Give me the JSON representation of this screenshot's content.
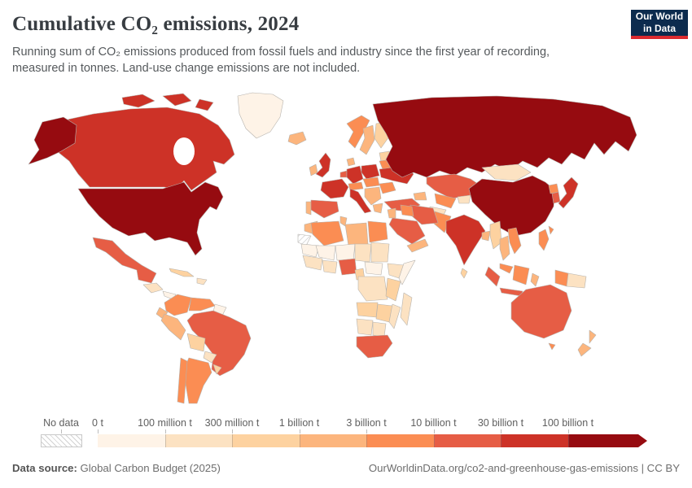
{
  "header": {
    "title": "Cumulative CO₂ emissions, 2024",
    "subtitle": "Running sum of CO₂ emissions produced from fossil fuels and industry since the first year of recording, measured in tonnes. Land-use change emissions are not included.",
    "logo_line1": "Our World",
    "logo_line2": "in Data",
    "logo_bg": "#0c2b4e",
    "logo_accent": "#dc2a2f"
  },
  "legend": {
    "no_data_label": "No data",
    "bins": [
      {
        "label": "0 t",
        "color": "#fef3e7"
      },
      {
        "label": "100 million t",
        "color": "#fce2c2"
      },
      {
        "label": "300 million t",
        "color": "#fdd2a0"
      },
      {
        "label": "1 billion t",
        "color": "#fcb57d"
      },
      {
        "label": "3 billion t",
        "color": "#fb8d53"
      },
      {
        "label": "10 billion t",
        "color": "#e65d45"
      },
      {
        "label": "30 billion t",
        "color": "#cd3227"
      },
      {
        "label": "100 billion t",
        "color": "#960b10"
      }
    ]
  },
  "footer": {
    "source_label": "Data source:",
    "source_value": " Global Carbon Budget (2025)",
    "attribution": "OurWorldinData.org/co2-and-greenhouse-gas-emissions | CC BY"
  },
  "map": {
    "palette": {
      "c1": "#fef3e7",
      "c2": "#fce2c2",
      "c3": "#fdd2a0",
      "c4": "#fcb57d",
      "c5": "#fb8d53",
      "c6": "#e65d45",
      "c7": "#cd3227",
      "c8": "#960b10",
      "nodata": "hatch"
    },
    "regions": {
      "greenland": "c1",
      "canada": "c7",
      "alaska": "c8",
      "usa": "c8",
      "mexico": "c6",
      "guatemala": "c2",
      "panama-costa-rica": "c1",
      "cuba": "c3",
      "hispaniola": "c2",
      "colombia": "c5",
      "venezuela": "c5",
      "guyanas": "c1",
      "brazil": "c6",
      "peru": "c4",
      "ecuador": "c4",
      "bolivia": "c3",
      "paraguay": "c2",
      "argentina": "c5",
      "chile": "c5",
      "uruguay": "c3",
      "iceland": "c4",
      "uk": "c7",
      "ireland": "c4",
      "norway": "c5",
      "sweden": "c4",
      "finland": "c3",
      "baltics": "c3",
      "denmark": "c4",
      "germany": "c7",
      "france": "c7",
      "spain": "c6",
      "portugal": "c4",
      "benelux": "c6",
      "italy": "c7",
      "alpine": "c5",
      "poland": "c7",
      "czech-hungary": "c5",
      "balkans": "c4",
      "romania": "c5",
      "ukraine": "c7",
      "belarus": "c5",
      "greece": "c4",
      "turkey": "c6",
      "russia": "c8",
      "kazakhstan": "c6",
      "uzbek-turkmen": "c5",
      "kyrgyz-tajik": "c2",
      "caucasus": "c4",
      "mongolia": "c2",
      "china": "c8",
      "japan": "c7",
      "south-korea": "c6",
      "north-korea": "c5",
      "taiwan": "c5",
      "india": "c7",
      "pakistan": "c5",
      "afghanistan": "c2",
      "iran": "c6",
      "iraq": "c5",
      "saudi-arabia": "c6",
      "yemen-oman": "c4",
      "levant": "c4",
      "bangladesh": "c4",
      "myanmar": "c3",
      "thailand": "c4",
      "vietnam": "c5",
      "malaysia": "c5",
      "sri-lanka": "c3",
      "philippines": "c5",
      "sumatra": "c6",
      "java": "c6",
      "borneo": "c5",
      "sulawesi": "c4",
      "west-new-guinea": "c5",
      "papua-new-guinea": "c2",
      "morocco": "c4",
      "western-sahara": "nodata",
      "algeria": "c5",
      "tunisia": "c4",
      "libya": "c4",
      "egypt": "c5",
      "mauritania": "c1",
      "mali": "c1",
      "niger": "c1",
      "chad": "c2",
      "sudan": "c2",
      "west-africa": "c2",
      "ghana": "c2",
      "nigeria": "c6",
      "cameroon": "c3",
      "ethiopia": "c2",
      "somalia": "c1",
      "central-africa": "c1",
      "drc": "c2",
      "kenya-tanzania": "c3",
      "angola": "c3",
      "zambia-zimbabwe": "c3",
      "mozambique": "c2",
      "namibia": "c2",
      "botswana": "c2",
      "south-africa": "c6",
      "madagascar": "c2",
      "australia": "c6",
      "tasmania": "c5",
      "new-zealand-north": "c4",
      "new-zealand-south": "c4"
    }
  },
  "chart_data": {
    "type": "heatmap",
    "subtype": "choropleth-world-map",
    "title": "Cumulative CO₂ emissions, 2024",
    "unit": "tonnes",
    "legend_position": "bottom",
    "legend_bins": [
      "0 t",
      "100 million t",
      "300 million t",
      "1 billion t",
      "3 billion t",
      "10 billion t",
      "30 billion t",
      "100 billion t"
    ],
    "no_data": [
      "Western Sahara"
    ],
    "values_by_country": {
      "United States": "more than 100 billion t",
      "China": "more than 100 billion t",
      "Russia": "more than 100 billion t",
      "Canada": "30-100 billion t",
      "United Kingdom": "30-100 billion t",
      "Germany": "30-100 billion t",
      "France": "30-100 billion t",
      "Poland": "30-100 billion t",
      "Ukraine": "30-100 billion t",
      "Italy": "30-100 billion t",
      "India": "30-100 billion t",
      "Japan": "30-100 billion t",
      "Mexico": "10-30 billion t",
      "Brazil": "10-30 billion t",
      "Spain": "10-30 billion t",
      "Turkey": "10-30 billion t",
      "Kazakhstan": "10-30 billion t",
      "Iran": "10-30 billion t",
      "Saudi Arabia": "10-30 billion t",
      "South Korea": "10-30 billion t",
      "Indonesia": "10-30 billion t",
      "Nigeria": "10-30 billion t",
      "South Africa": "10-30 billion t",
      "Australia": "10-30 billion t",
      "Colombia": "3-10 billion t",
      "Venezuela": "3-10 billion t",
      "Argentina": "3-10 billion t",
      "Chile": "3-10 billion t",
      "Norway": "3-10 billion t",
      "Algeria": "3-10 billion t",
      "Egypt": "3-10 billion t",
      "Pakistan": "3-10 billion t",
      "Vietnam": "3-10 billion t",
      "Malaysia": "3-10 billion t",
      "Philippines": "3-10 billion t",
      "Peru": "1-3 billion t",
      "Sweden": "1-3 billion t",
      "Morocco": "1-3 billion t",
      "Libya": "1-3 billion t",
      "Thailand": "1-3 billion t",
      "New Zealand": "1-3 billion t",
      "Ireland": "1-3 billion t",
      "Iceland": "1-3 billion t",
      "Bolivia": "300 million-1 billion t",
      "Finland": "300 million-1 billion t",
      "Myanmar": "300 million-1 billion t",
      "Cuba": "300 million-1 billion t",
      "Mongolia": "100-300 million t",
      "Afghanistan": "100-300 million t",
      "Ethiopia": "100-300 million t",
      "Democratic Republic of Congo": "100-300 million t",
      "Paraguay": "100-300 million t",
      "Papua New Guinea": "100-300 million t",
      "Madagascar": "100-300 million t",
      "Greenland": "0-100 million t",
      "Mauritania": "0-100 million t",
      "Mali": "0-100 million t",
      "Niger": "0-100 million t",
      "Somalia": "0-100 million t"
    }
  }
}
